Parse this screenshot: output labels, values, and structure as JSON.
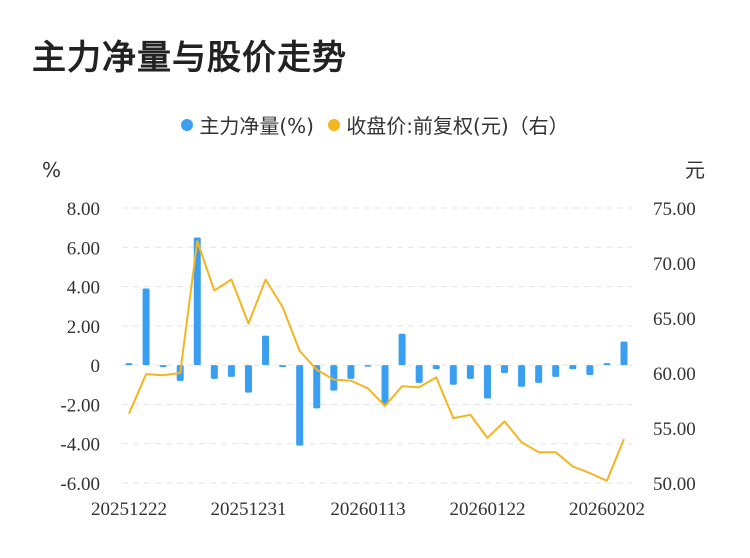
{
  "chart_data": {
    "type": "bar",
    "title": "主力净量与股价走势",
    "legend": [
      "主力净量(%)",
      "收盘价:前复权(元)（右）"
    ],
    "colors": {
      "bars": "#3a9ff0",
      "line": "#f5b521"
    },
    "left_unit": "%",
    "right_unit": "元",
    "left_ylim": [
      -6,
      8
    ],
    "right_ylim": [
      50,
      75
    ],
    "left_ticks": [
      "8.00",
      "6.00",
      "4.00",
      "2.00",
      "0",
      "-2.00",
      "-4.00",
      "-6.00"
    ],
    "right_ticks": [
      "75.00",
      "70.00",
      "65.00",
      "60.00",
      "55.00",
      "50.00"
    ],
    "x_tick_labels": [
      "20251222",
      "20251231",
      "20260113",
      "20260122",
      "20260202"
    ],
    "grid": "horizontal-dashed",
    "series": [
      {
        "name": "主力净量(%)",
        "type": "bar",
        "axis": "left",
        "values": [
          0.1,
          3.9,
          -0.1,
          -0.8,
          6.5,
          -0.7,
          -0.6,
          -1.4,
          1.5,
          -0.1,
          -4.1,
          -2.2,
          -1.3,
          -0.7,
          0,
          -2.0,
          1.6,
          -0.9,
          -0.2,
          -1.0,
          -0.7,
          -1.7,
          -0.4,
          -1.1,
          -0.9,
          -0.6,
          -0.2,
          -0.5,
          0.1,
          1.2
        ]
      },
      {
        "name": "收盘价:前复权(元)（右）",
        "type": "line",
        "axis": "right",
        "values": [
          56.3,
          59.9,
          59.8,
          60.0,
          72.0,
          67.5,
          68.5,
          64.5,
          68.5,
          66.0,
          62.0,
          60.3,
          59.4,
          59.3,
          58.6,
          57.0,
          58.8,
          58.7,
          59.6,
          55.9,
          56.2,
          54.1,
          55.6,
          53.7,
          52.8,
          52.8,
          51.5,
          50.9,
          50.2,
          54.0
        ]
      }
    ]
  }
}
